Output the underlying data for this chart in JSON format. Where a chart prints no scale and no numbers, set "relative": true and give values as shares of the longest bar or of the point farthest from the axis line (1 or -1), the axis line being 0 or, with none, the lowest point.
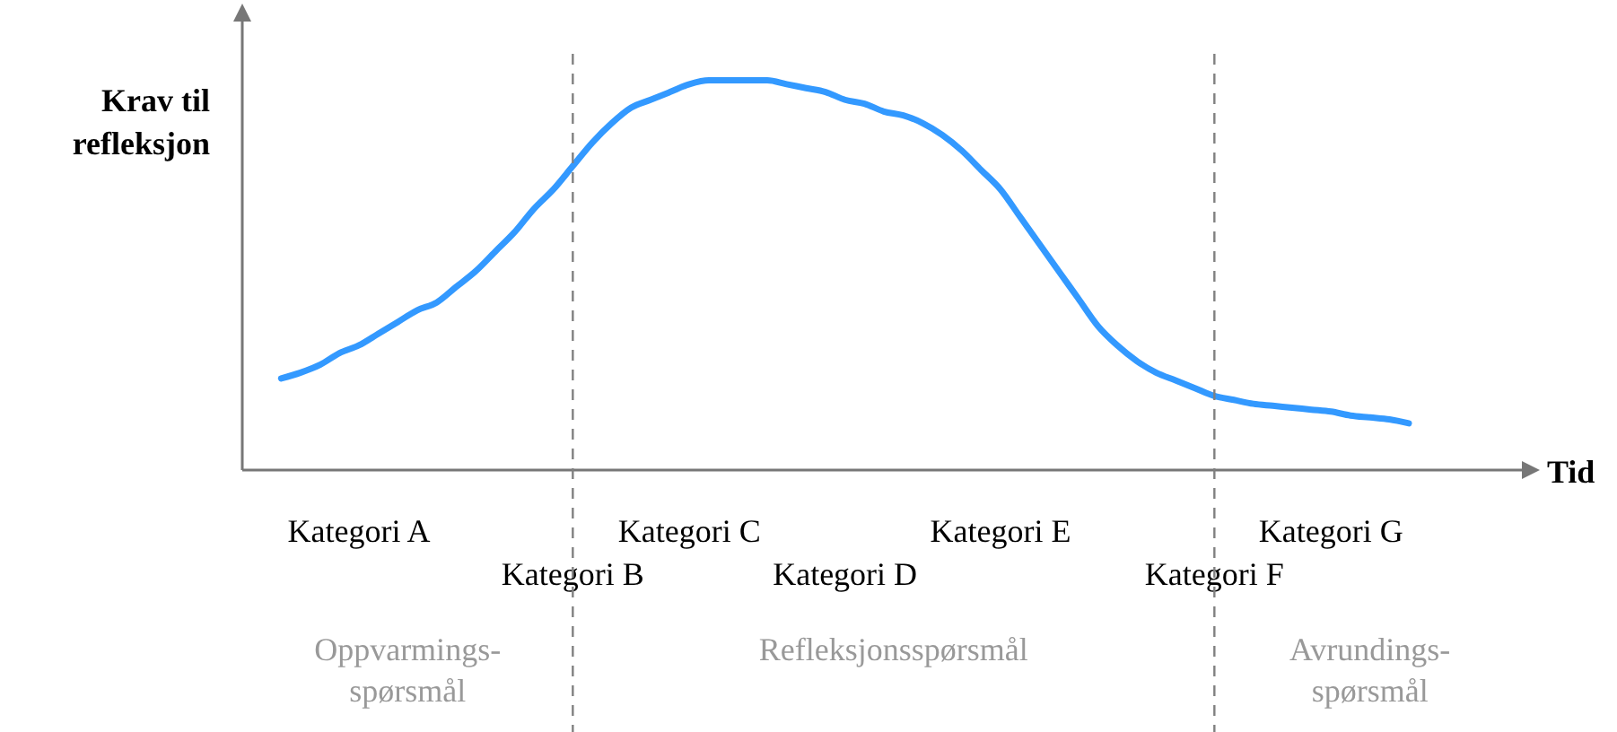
{
  "chart_data": {
    "type": "line",
    "relative": true,
    "xlabel": "Tid",
    "ylabel": "Krav til\nrefleksjon",
    "categories": [
      null,
      null,
      null,
      null,
      null,
      null,
      "Kategori A",
      null,
      null,
      null,
      null,
      null,
      null,
      null,
      null,
      null,
      null,
      "Kategori B",
      null,
      null,
      null,
      null,
      null,
      "Kategori C",
      null,
      null,
      null,
      null,
      null,
      null,
      null,
      "Kategori D",
      null,
      null,
      null,
      null,
      null,
      null,
      null,
      "Kategori E",
      null,
      null,
      null,
      null,
      null,
      null,
      null,
      null,
      null,
      null,
      "Kategori F",
      null,
      null,
      null,
      null,
      null,
      "Kategori G",
      null,
      null,
      null,
      null,
      null,
      null,
      null,
      null,
      null,
      null
    ],
    "series": [
      {
        "color": "#3399ff",
        "values": [
          null,
          null,
          0.235,
          0.25,
          0.27,
          0.3,
          0.32,
          0.35,
          0.38,
          0.41,
          0.43,
          0.47,
          0.51,
          0.56,
          0.61,
          0.67,
          0.72,
          0.78,
          0.84,
          0.89,
          0.93,
          0.95,
          0.97,
          0.99,
          1.0,
          1.0,
          1.0,
          1.0,
          0.99,
          0.98,
          0.97,
          0.95,
          0.94,
          0.92,
          0.91,
          0.89,
          0.86,
          0.82,
          0.77,
          0.72,
          0.65,
          0.58,
          0.51,
          0.44,
          0.37,
          0.32,
          0.28,
          0.25,
          0.23,
          0.21,
          0.19,
          0.18,
          0.17,
          0.165,
          0.16,
          0.155,
          0.15,
          0.14,
          0.135,
          0.13,
          0.12,
          null,
          null,
          null,
          null,
          null,
          null
        ]
      }
    ],
    "ref_lines": [
      {
        "axis": "x",
        "value": "Kategori B",
        "color": "#808080",
        "line_style": "dashed"
      },
      {
        "axis": "x",
        "value": "Kategori F",
        "color": "#808080",
        "line_style": "dashed"
      }
    ],
    "annotations": [
      "Oppvarmings-\nspørsmål",
      "Refleksjonsspørsmål",
      "Avrundings-\nspørsmål"
    ],
    "marker": "none",
    "line_style": "solid"
  }
}
